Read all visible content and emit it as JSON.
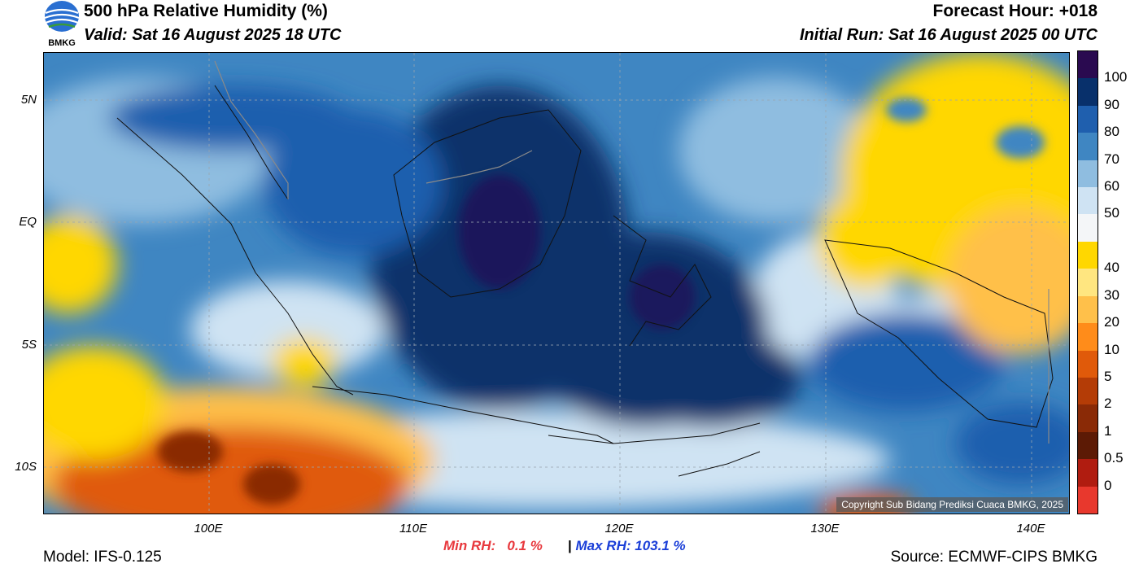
{
  "header": {
    "title": "500 hPa Relative Humidity (%)",
    "valid": "Valid: Sat 16 August 2025 18 UTC",
    "forecast_hour": "Forecast Hour: +018",
    "initial_run": "Initial Run: Sat 16 August 2025 00 UTC",
    "logo_text": "BMKG"
  },
  "map": {
    "lat_labels": [
      "5N",
      "EQ",
      "5S",
      "10S"
    ],
    "lon_labels": [
      "100E",
      "110E",
      "120E",
      "130E",
      "140E"
    ],
    "copyright": "Copyright Sub Bidang Prediksi Cuaca BMKG, 2025"
  },
  "colorbar": {
    "labels": [
      "100",
      "90",
      "80",
      "70",
      "60",
      "50",
      "40",
      "30",
      "20",
      "10",
      "5",
      "2",
      "1",
      "0.5",
      "0"
    ],
    "colors": [
      "#2a0a50",
      "#08306b",
      "#1f5fae",
      "#3f86c2",
      "#8fbde0",
      "#cfe3f3",
      "#f4f6f8",
      "#ffd700",
      "#ffe680",
      "#ffc04a",
      "#ff8c1a",
      "#e05a0a",
      "#b43c06",
      "#8a2a06",
      "#5c1a05",
      "#b01c10",
      "#e8382d"
    ]
  },
  "stats": {
    "min_label": "Min RH:",
    "min_value": "0.1 %",
    "separator": "|",
    "max_label": "Max RH:",
    "max_value": "103.1 %"
  },
  "footer": {
    "model": "Model: IFS-0.125",
    "source": "Source: ECMWF-CIPS BMKG"
  }
}
